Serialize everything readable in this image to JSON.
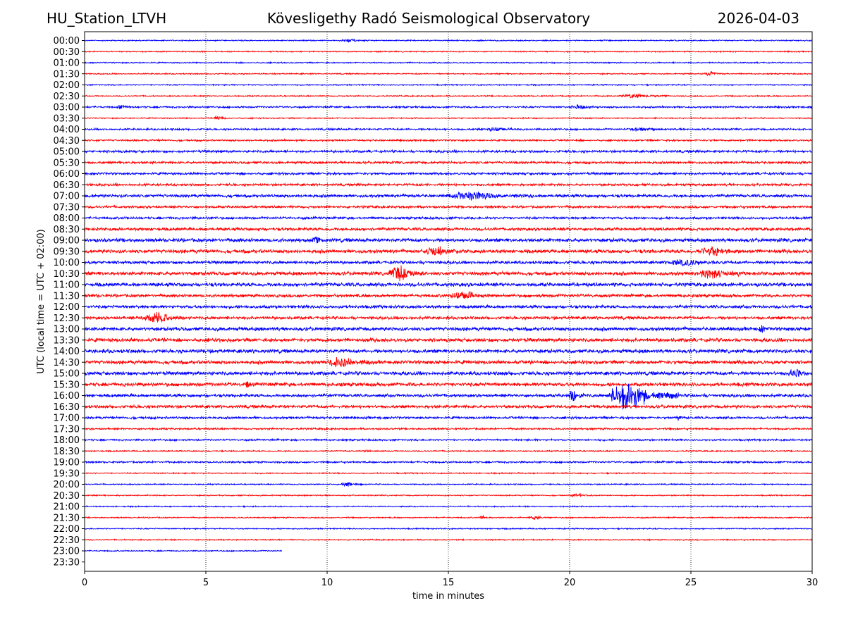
{
  "header": {
    "station": "HU_Station_LTVH",
    "observatory": "Kövesligethy Radó Seismological Observatory",
    "date": "2026-04-03"
  },
  "chart_data": {
    "type": "line",
    "title": "Kövesligethy Radó Seismological Observatory",
    "xlabel": "time in minutes",
    "ylabel": "UTC (local time = UTC + 02:00)",
    "xlim": [
      0,
      30
    ],
    "xticks": [
      0,
      5,
      10,
      15,
      20,
      25,
      30
    ],
    "grid": "vertical dotted lines at 5-minute ticks",
    "trace_colors": [
      "#0000ff",
      "#ff0000"
    ],
    "rows": [
      "00:00",
      "00:30",
      "01:00",
      "01:30",
      "02:00",
      "02:30",
      "03:00",
      "03:30",
      "04:00",
      "04:30",
      "05:00",
      "05:30",
      "06:00",
      "06:30",
      "07:00",
      "07:30",
      "08:00",
      "08:30",
      "09:00",
      "09:30",
      "10:00",
      "10:30",
      "11:00",
      "11:30",
      "12:00",
      "12:30",
      "13:00",
      "13:30",
      "14:00",
      "14:30",
      "15:00",
      "15:30",
      "16:00",
      "16:30",
      "17:00",
      "17:30",
      "18:00",
      "18:30",
      "19:00",
      "19:30",
      "20:00",
      "20:30",
      "21:00",
      "21:30",
      "22:00",
      "22:30",
      "23:00",
      "23:30"
    ],
    "noise_amplitude": [
      1,
      1,
      1,
      1,
      1,
      1,
      1.5,
      1,
      1.5,
      1.5,
      2,
      2,
      2,
      2,
      2.5,
      2,
      2,
      2.5,
      3,
      3,
      2.5,
      3,
      3,
      2.5,
      2.5,
      2.5,
      3,
      3,
      3,
      3,
      3,
      3,
      2.5,
      2.5,
      2,
      1.5,
      1.5,
      1,
      1.5,
      1,
      1,
      1,
      1,
      1,
      1,
      1,
      1,
      0
    ],
    "trace_end_minutes": 8.15,
    "trace_end_row": "23:00",
    "events": [
      {
        "row": "00:00",
        "start_min": 10.5,
        "end_min": 11.8,
        "amp": 2
      },
      {
        "row": "01:30",
        "start_min": 25.5,
        "end_min": 26.5,
        "amp": 3
      },
      {
        "row": "02:30",
        "start_min": 22.0,
        "end_min": 24.0,
        "amp": 3
      },
      {
        "row": "03:00",
        "start_min": 1.3,
        "end_min": 2.0,
        "amp": 3
      },
      {
        "row": "03:00",
        "start_min": 20.0,
        "end_min": 21.2,
        "amp": 3
      },
      {
        "row": "03:30",
        "start_min": 5.3,
        "end_min": 6.0,
        "amp": 3
      },
      {
        "row": "04:00",
        "start_min": 16.5,
        "end_min": 18.0,
        "amp": 3
      },
      {
        "row": "04:00",
        "start_min": 22.5,
        "end_min": 23.5,
        "amp": 3
      },
      {
        "row": "07:00",
        "start_min": 15.0,
        "end_min": 18.5,
        "amp": 5
      },
      {
        "row": "09:00",
        "start_min": 9.3,
        "end_min": 10.0,
        "amp": 4
      },
      {
        "row": "09:30",
        "start_min": 14.0,
        "end_min": 15.5,
        "amp": 6
      },
      {
        "row": "09:30",
        "start_min": 25.3,
        "end_min": 27.0,
        "amp": 7
      },
      {
        "row": "10:00",
        "start_min": 24.0,
        "end_min": 26.5,
        "amp": 4
      },
      {
        "row": "10:30",
        "start_min": 12.5,
        "end_min": 14.0,
        "amp": 11
      },
      {
        "row": "10:30",
        "start_min": 25.3,
        "end_min": 27.0,
        "amp": 8
      },
      {
        "row": "11:30",
        "start_min": 15.0,
        "end_min": 17.0,
        "amp": 6
      },
      {
        "row": "12:30",
        "start_min": 2.3,
        "end_min": 4.3,
        "amp": 8
      },
      {
        "row": "13:00",
        "start_min": 27.8,
        "end_min": 28.2,
        "amp": 5
      },
      {
        "row": "14:30",
        "start_min": 10.0,
        "end_min": 11.8,
        "amp": 7
      },
      {
        "row": "15:00",
        "start_min": 29.0,
        "end_min": 30.0,
        "amp": 5
      },
      {
        "row": "15:30",
        "start_min": 6.6,
        "end_min": 6.9,
        "amp": 5
      },
      {
        "row": "16:00",
        "start_min": 19.95,
        "end_min": 20.6,
        "amp": 12
      },
      {
        "row": "16:00",
        "start_min": 21.5,
        "end_min": 24.5,
        "amp": 22
      },
      {
        "row": "17:00",
        "start_min": 24.4,
        "end_min": 24.7,
        "amp": 5
      },
      {
        "row": "18:30",
        "start_min": 11.5,
        "end_min": 11.8,
        "amp": 3
      },
      {
        "row": "20:00",
        "start_min": 10.5,
        "end_min": 11.5,
        "amp": 3
      },
      {
        "row": "20:30",
        "start_min": 20.0,
        "end_min": 21.0,
        "amp": 3
      },
      {
        "row": "21:30",
        "start_min": 16.3,
        "end_min": 16.6,
        "amp": 4
      },
      {
        "row": "21:30",
        "start_min": 18.3,
        "end_min": 19.2,
        "amp": 3
      }
    ]
  }
}
